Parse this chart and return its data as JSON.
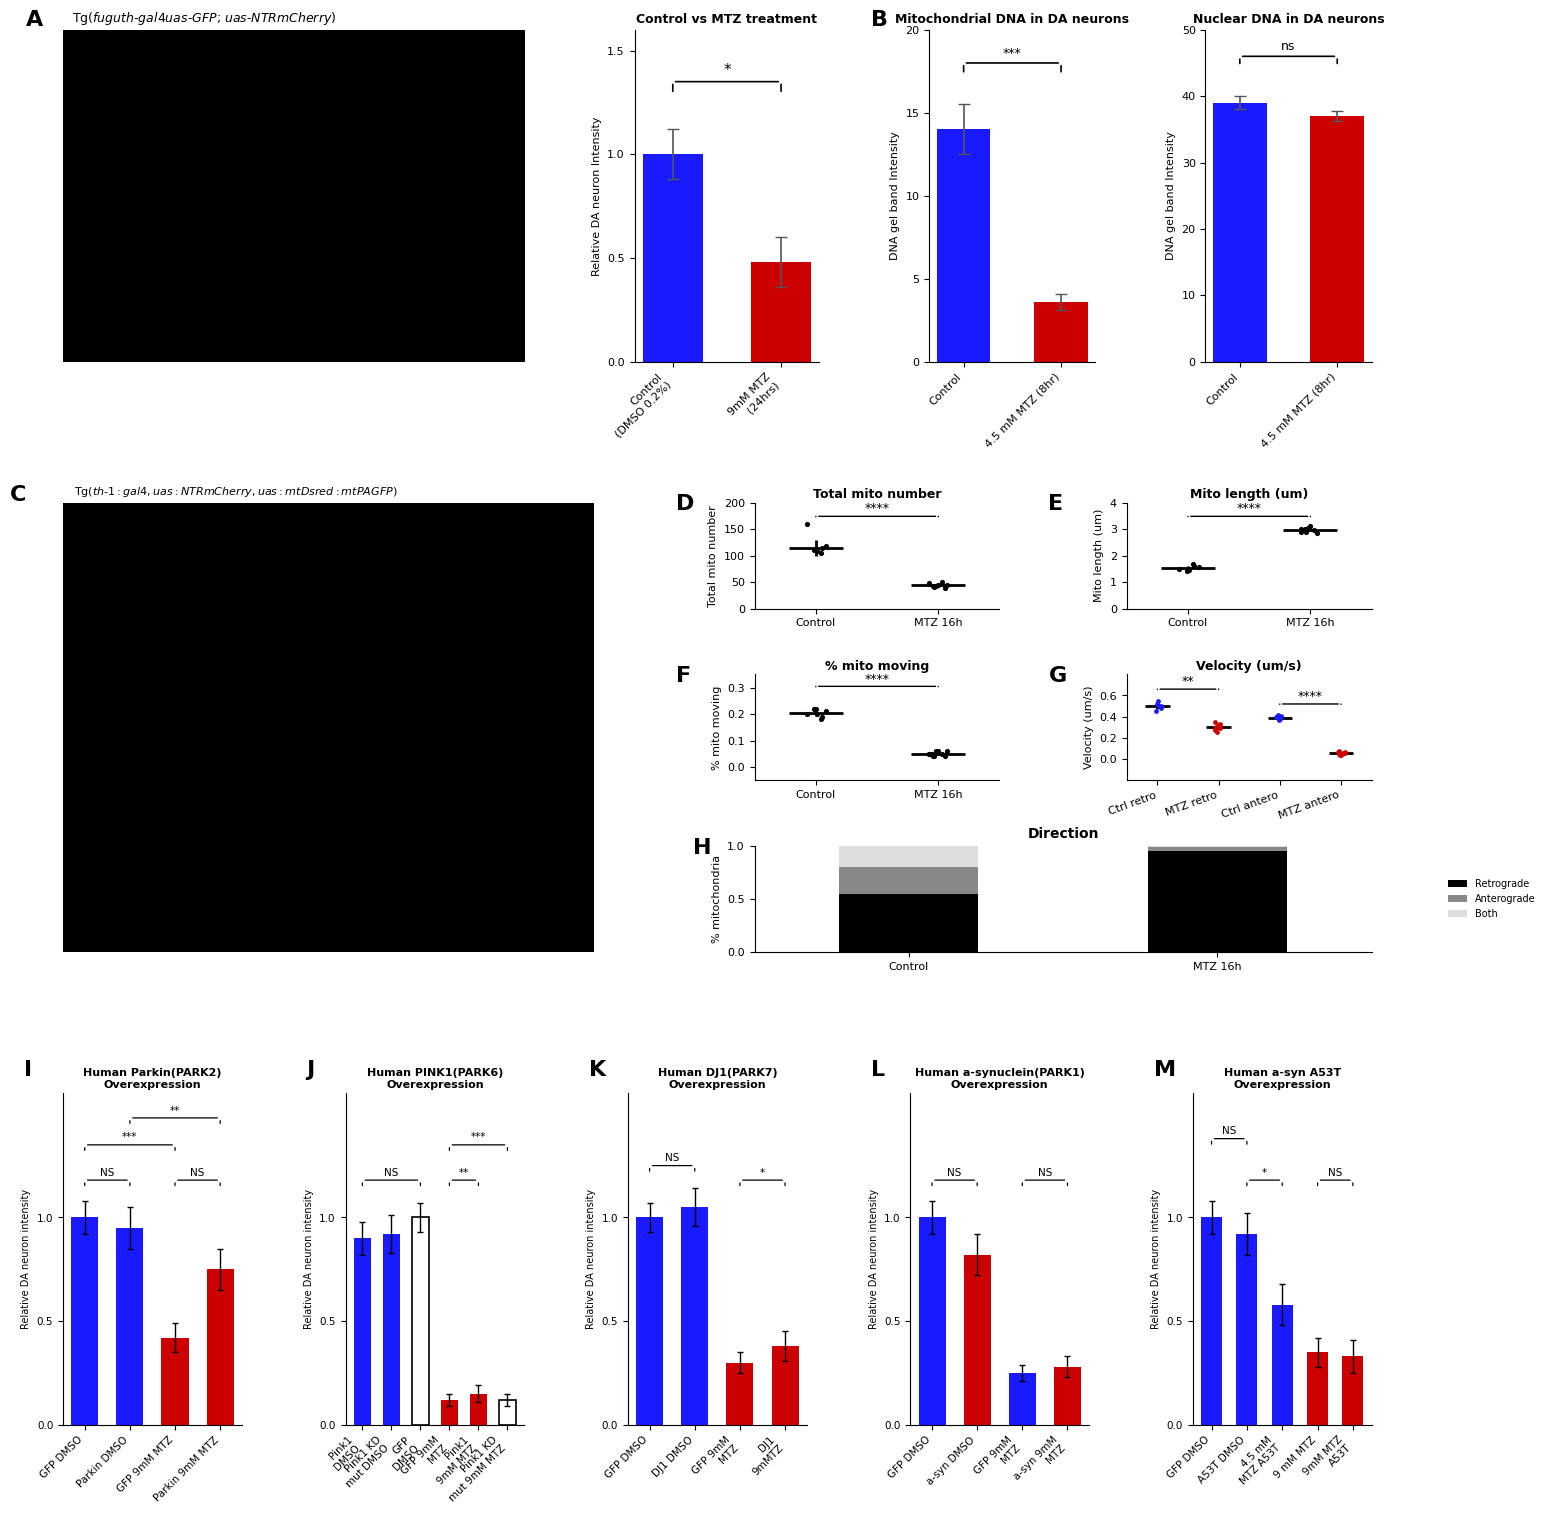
{
  "panel_A_bar": {
    "title": "Control vs MTZ treatment",
    "ylabel": "Relative DA neuron Intensity",
    "categories": [
      "Control\n(DMSO 0.2%)",
      "9mM MTZ\n(24hrs)"
    ],
    "values": [
      1.0,
      0.48
    ],
    "errors": [
      0.12,
      0.12
    ],
    "colors": [
      "#1a1aff",
      "#cc0000"
    ],
    "ylim": [
      0,
      1.6
    ],
    "yticks": [
      0.0,
      0.5,
      1.0,
      1.5
    ],
    "sig": "*"
  },
  "panel_B_mito": {
    "title": "Mitochondrial DNA in DA neurons",
    "ylabel": "DNA gel band Intensity",
    "categories": [
      "Control",
      "4.5 mM MTZ (8hr)"
    ],
    "values": [
      14.0,
      3.6
    ],
    "errors": [
      1.5,
      0.5
    ],
    "colors": [
      "#1a1aff",
      "#cc0000"
    ],
    "ylim": [
      0,
      20
    ],
    "yticks": [
      0,
      5,
      10,
      15,
      20
    ],
    "sig": "***"
  },
  "panel_B_nuclear": {
    "title": "Nuclear DNA in DA neurons",
    "ylabel": "DNA gel band Intensity",
    "categories": [
      "Control",
      "4.5 mM MTZ (8hr)"
    ],
    "values": [
      39.0,
      37.0
    ],
    "errors": [
      1.0,
      0.8
    ],
    "colors": [
      "#1a1aff",
      "#cc0000"
    ],
    "ylim": [
      0,
      50
    ],
    "yticks": [
      0,
      10,
      20,
      30,
      40,
      50
    ],
    "sig": "ns"
  },
  "panel_D": {
    "title": "Total mito number",
    "ylabel": "Total mito number",
    "ctrl_dots": [
      160,
      115,
      110,
      105,
      118,
      108,
      112
    ],
    "mtz_dots": [
      47,
      42,
      44,
      50,
      38,
      43,
      48,
      40,
      45
    ],
    "ctrl_mean": 115,
    "mtz_mean": 44,
    "ctrl_err": 15,
    "mtz_err": 3,
    "ylim": [
      0,
      200
    ],
    "yticks": [
      0,
      50,
      100,
      150,
      200
    ],
    "sig": "****"
  },
  "panel_E": {
    "title": "Mito length (um)",
    "ylabel": "Mito length (um)",
    "ctrl_dots": [
      1.5,
      1.6,
      1.4,
      1.7,
      1.55,
      1.45,
      1.5
    ],
    "mtz_dots": [
      2.9,
      3.0,
      3.1,
      2.95,
      2.85,
      3.05,
      3.0,
      2.9
    ],
    "ctrl_mean": 1.53,
    "mtz_mean": 2.98,
    "ctrl_err": 0.08,
    "mtz_err": 0.06,
    "ylim": [
      0,
      4
    ],
    "yticks": [
      0,
      1,
      2,
      3,
      4
    ],
    "sig": "****"
  },
  "panel_F": {
    "title": "% mito moving",
    "ylabel": "% mito moving",
    "ctrl_dots": [
      0.2,
      0.19,
      0.22,
      0.18,
      0.21,
      0.2,
      0.22
    ],
    "mtz_dots": [
      0.05,
      0.04,
      0.06,
      0.05,
      0.04,
      0.06,
      0.05,
      0.04,
      0.06,
      0.05
    ],
    "ctrl_mean": 0.203,
    "mtz_mean": 0.05,
    "ctrl_err": 0.01,
    "mtz_err": 0.005,
    "ylim": [
      -0.05,
      0.35
    ],
    "yticks": [
      0.0,
      0.1,
      0.2,
      0.3
    ],
    "sig": "****"
  },
  "panel_G": {
    "title": "Velocity (um/s)",
    "ylabel": "Velocity (um/s)",
    "categories": [
      "Ctrl retro",
      "MTZ retro",
      "Ctrl antero",
      "MTZ antero"
    ],
    "ctrl_retro_dots": [
      0.55,
      0.5,
      0.45,
      0.52,
      0.48,
      0.5
    ],
    "mtz_retro_dots": [
      0.35,
      0.3,
      0.28,
      0.32,
      0.27,
      0.3,
      0.29,
      0.26,
      0.33,
      0.31
    ],
    "ctrl_antero_dots": [
      0.4,
      0.38,
      0.42,
      0.37,
      0.39,
      0.41
    ],
    "mtz_antero_dots": [
      0.05,
      0.07,
      0.04,
      0.06,
      0.05,
      0.08,
      0.04,
      0.06,
      0.07
    ],
    "means": [
      0.5,
      0.3,
      0.39,
      0.055
    ],
    "errors": [
      0.03,
      0.02,
      0.015,
      0.008
    ],
    "ylim": [
      -0.2,
      0.8
    ],
    "yticks": [
      0.0,
      0.2,
      0.4,
      0.6
    ],
    "sig1": "**",
    "sig2": "****"
  },
  "panel_H": {
    "title": "Direction",
    "ylabel": "% mitochondria",
    "categories": [
      "Control",
      "MTZ 16h"
    ],
    "retrograde": [
      0.55,
      0.95
    ],
    "anterograde": [
      0.25,
      0.04
    ],
    "both": [
      0.2,
      0.01
    ],
    "ylim": [
      0,
      1.0
    ],
    "yticks": [
      0.0,
      0.5,
      1.0
    ],
    "colors_retro": "#000000",
    "colors_antero": "#888888",
    "colors_both": "#dddddd"
  },
  "panel_I": {
    "title": "Human Parkin(PARK2)\nOverexpression",
    "ylabel": "Relative DA neuron intensity",
    "categories": [
      "GFP DMSO",
      "Parkin DMSO",
      "GFP 9mM MTZ",
      "Parkin 9mM MTZ"
    ],
    "values": [
      1.0,
      0.95,
      0.42,
      0.75
    ],
    "errors": [
      0.08,
      0.1,
      0.07,
      0.1
    ],
    "colors": [
      "#1a1aff",
      "#1a1aff",
      "#cc0000",
      "#cc0000"
    ],
    "ylim": [
      0,
      1.6
    ],
    "yticks": [
      0.0,
      0.5,
      1.0
    ],
    "sigs": [
      [
        "NS",
        0,
        1,
        1.18
      ],
      [
        "NS",
        2,
        3,
        1.18
      ],
      [
        "***",
        0,
        2,
        1.35
      ],
      [
        "**",
        1,
        3,
        1.48
      ]
    ]
  },
  "panel_J": {
    "title": "Human PINK1(PARK6)\nOverexpression",
    "ylabel": "Relative DA neuron intensity",
    "categories": [
      "Pink1\nDMSO",
      "Pink1 KD\nmut DMSO",
      "GFP\nDMSO",
      "GFP 9mM\nMTZ",
      "Pink1\n9mM MTZ",
      "Pink1 KD\nmut 9mM MTZ"
    ],
    "values": [
      0.9,
      0.92,
      1.0,
      0.12,
      0.15,
      0.12
    ],
    "errors": [
      0.08,
      0.09,
      0.07,
      0.03,
      0.04,
      0.03
    ],
    "colors": [
      "#1a1aff",
      "#1a1aff",
      "#ffffff",
      "#cc0000",
      "#cc0000",
      "#ffffff"
    ],
    "ylim": [
      0,
      1.6
    ],
    "yticks": [
      0.0,
      0.5,
      1.0
    ],
    "sigs": [
      [
        "NS",
        0,
        2,
        1.18
      ],
      [
        "**",
        3,
        4,
        1.18
      ],
      [
        "***",
        3,
        5,
        1.35
      ]
    ]
  },
  "panel_K": {
    "title": "Human DJ1(PARK7)\nOverexpression",
    "ylabel": "Relative DA neuron intensity",
    "categories": [
      "GFP DMSO",
      "DJ1 DMSO",
      "GFP 9mM\nMTZ",
      "DJ1\n9mMTZ"
    ],
    "values": [
      1.0,
      1.05,
      0.3,
      0.38
    ],
    "errors": [
      0.07,
      0.09,
      0.05,
      0.07
    ],
    "colors": [
      "#1a1aff",
      "#1a1aff",
      "#cc0000",
      "#cc0000"
    ],
    "ylim": [
      0,
      1.6
    ],
    "yticks": [
      0.0,
      0.5,
      1.0
    ],
    "sigs": [
      [
        "NS",
        0,
        1,
        1.25
      ],
      [
        "*",
        2,
        3,
        1.18
      ]
    ]
  },
  "panel_L": {
    "title": "Human a-synuclein(PARK1)\nOverexpression",
    "ylabel": "Relative DA neuron intensity",
    "categories": [
      "GFP DMSO",
      "a-syn DMSO",
      "GFP 9mM\nMTZ",
      "a-syn 9mM\nMTZ"
    ],
    "values": [
      1.0,
      0.82,
      0.25,
      0.28
    ],
    "errors": [
      0.08,
      0.1,
      0.04,
      0.05
    ],
    "colors": [
      "#1a1aff",
      "#cc0000",
      "#1a1aff",
      "#cc0000"
    ],
    "ylim": [
      0,
      1.6
    ],
    "yticks": [
      0.0,
      0.5,
      1.0
    ],
    "sigs": [
      [
        "NS",
        0,
        1,
        1.18
      ],
      [
        "NS",
        2,
        3,
        1.18
      ]
    ]
  },
  "panel_M": {
    "title": "Human a-syn A53T\nOverexpression",
    "ylabel": "Relative DA neuron intensity",
    "categories": [
      "GFP DMSO",
      "A53T DMSO",
      "4.5 mM\nMTZ A53T",
      "9 mM MTZ",
      "9mM MTZ\nA53T"
    ],
    "values": [
      1.0,
      0.92,
      0.58,
      0.35,
      0.33
    ],
    "errors": [
      0.08,
      0.1,
      0.1,
      0.07,
      0.08
    ],
    "colors": [
      "#1a1aff",
      "#1a1aff",
      "#1a1aff",
      "#cc0000",
      "#cc0000"
    ],
    "ylim": [
      0,
      1.6
    ],
    "yticks": [
      0.0,
      0.5,
      1.0
    ],
    "sigs": [
      [
        "NS",
        0,
        1,
        1.38
      ],
      [
        "*",
        1,
        2,
        1.18
      ],
      [
        "NS",
        3,
        4,
        1.18
      ]
    ]
  }
}
